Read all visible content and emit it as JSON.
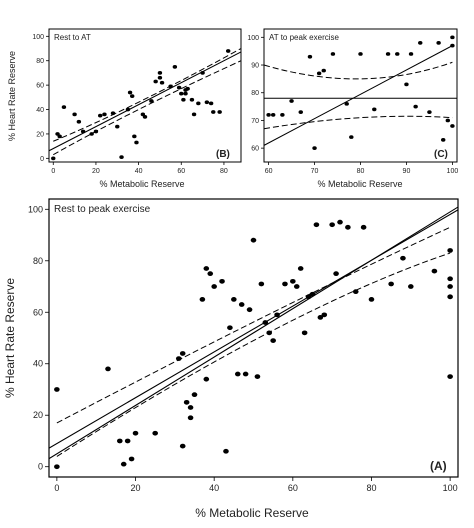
{
  "chart_data": [
    {
      "id": "B",
      "type": "scatter",
      "title": "Rest to AT",
      "panel_letter": "(B)",
      "xlabel": "% Metabolic Reserve",
      "ylabel": "% Heart Rate Reserve",
      "xlim": [
        -2,
        88
      ],
      "ylim": [
        -3,
        106
      ],
      "xticks": [
        0,
        20,
        40,
        60,
        80
      ],
      "yticks": [
        0,
        20,
        40,
        60,
        80,
        100
      ],
      "fit": {
        "slope": 0.9,
        "intercept": 8
      },
      "ci_lower": [
        [
          0,
          3
        ],
        [
          40,
          40
        ],
        [
          88,
          80
        ]
      ],
      "ci_upper": [
        [
          0,
          14
        ],
        [
          40,
          46
        ],
        [
          88,
          90
        ]
      ],
      "x": [
        0,
        2,
        3,
        5,
        10,
        12,
        14,
        18,
        20,
        22,
        24,
        28,
        30,
        32,
        35,
        36,
        37,
        38,
        39,
        42,
        43,
        46,
        48,
        50,
        50,
        51,
        55,
        57,
        59,
        60,
        61,
        62,
        62,
        63,
        65,
        66,
        68,
        70,
        72,
        74,
        75,
        78,
        82
      ],
      "y": [
        0,
        20,
        18,
        42,
        36,
        30,
        22,
        20,
        22,
        35,
        36,
        37,
        26,
        1,
        40,
        54,
        51,
        18,
        13,
        36,
        34,
        47,
        63,
        70,
        66,
        62,
        59,
        75,
        58,
        53,
        48,
        53,
        56,
        57,
        48,
        36,
        45,
        70,
        46,
        45,
        38,
        38,
        88
      ]
    },
    {
      "id": "C",
      "type": "scatter",
      "title": "AT to peak exercise",
      "panel_letter": "(C)",
      "xlabel": "% Metabolic Reserve",
      "ylabel": "",
      "xlim": [
        59,
        101
      ],
      "ylim": [
        55,
        103
      ],
      "xticks": [
        60,
        70,
        80,
        90,
        100
      ],
      "yticks": [
        60,
        70,
        80,
        90,
        100
      ],
      "fit_flat": 78,
      "fit_rising": [
        [
          59,
          61
        ],
        [
          100,
          97
        ]
      ],
      "ci_upper": [
        [
          59,
          90
        ],
        [
          80,
          85
        ],
        [
          100,
          91
        ]
      ],
      "ci_lower": [
        [
          59,
          67
        ],
        [
          80,
          71
        ],
        [
          100,
          71
        ]
      ],
      "x": [
        60,
        61,
        63,
        65,
        67,
        69,
        70,
        71,
        72,
        74,
        77,
        78,
        80,
        83,
        86,
        88,
        90,
        91,
        92,
        93,
        95,
        97,
        98,
        99,
        100,
        100,
        100
      ],
      "y": [
        72,
        72,
        72,
        77,
        73,
        93,
        60,
        87,
        88,
        94,
        76,
        64,
        94,
        74,
        94,
        94,
        83,
        94,
        75,
        98,
        73,
        98,
        63,
        70,
        68,
        97,
        100
      ]
    },
    {
      "id": "A",
      "type": "scatter",
      "title": "Rest to peak exercise",
      "panel_letter": "(A)",
      "xlabel": "% Metabolic Reserve",
      "ylabel": "% Heart Rate Reserve",
      "xlim": [
        -2,
        102
      ],
      "ylim": [
        -4,
        104
      ],
      "xticks": [
        0,
        20,
        40,
        60,
        80,
        100
      ],
      "yticks": [
        0,
        20,
        40,
        60,
        80,
        100
      ],
      "fit": {
        "slope": 0.89,
        "intercept": 9
      },
      "fit_steep": {
        "slope": 0.94,
        "intercept": 5
      },
      "ci_lower": [
        [
          0,
          4
        ],
        [
          55,
          53
        ],
        [
          100,
          83
        ]
      ],
      "ci_upper": [
        [
          0,
          17
        ],
        [
          55,
          60
        ],
        [
          100,
          93
        ]
      ],
      "x": [
        0,
        0,
        13,
        16,
        17,
        18,
        19,
        20,
        25,
        31,
        32,
        32,
        33,
        34,
        34,
        35,
        37,
        38,
        38,
        39,
        40,
        42,
        43,
        44,
        45,
        46,
        47,
        48,
        49,
        50,
        51,
        52,
        53,
        54,
        55,
        56,
        58,
        60,
        61,
        62,
        63,
        64,
        65,
        66,
        67,
        68,
        70,
        71,
        72,
        74,
        76,
        78,
        80,
        85,
        88,
        90,
        96,
        100,
        100,
        100,
        100,
        100
      ],
      "y": [
        0,
        30,
        38,
        10,
        1,
        10,
        3,
        13,
        13,
        42,
        44,
        8,
        25,
        23,
        19,
        28,
        65,
        34,
        77,
        75,
        70,
        72,
        6,
        54,
        65,
        36,
        63,
        36,
        61,
        88,
        35,
        71,
        56,
        52,
        49,
        59,
        71,
        72,
        70,
        77,
        52,
        66,
        67,
        94,
        58,
        59,
        94,
        75,
        95,
        93,
        68,
        93,
        65,
        71,
        81,
        70,
        76,
        84,
        73,
        70,
        66,
        35
      ]
    }
  ]
}
